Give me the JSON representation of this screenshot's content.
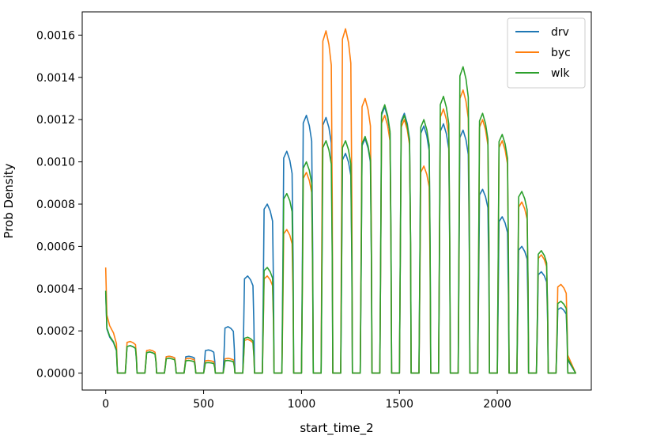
{
  "chart_data": {
    "type": "line",
    "title": "",
    "xlabel": "start_time_2",
    "ylabel": "Prob Density",
    "xlim": [
      -120,
      2480
    ],
    "ylim": [
      -8e-05,
      0.00171
    ],
    "xticks": [
      0,
      500,
      1000,
      1500,
      2000
    ],
    "xtick_labels": [
      "0",
      "500",
      "1000",
      "1500",
      "2000"
    ],
    "yticks": [
      0,
      0.0002,
      0.0004,
      0.0006,
      0.0008,
      0.001,
      0.0012,
      0.0014,
      0.0016
    ],
    "ytick_labels": [
      "0.0000",
      "0.0002",
      "0.0004",
      "0.0006",
      "0.0008",
      "0.0010",
      "0.0012",
      "0.0014",
      "0.0016"
    ],
    "grid": false,
    "legend_position": "top-right",
    "hour_peaks": [
      {
        "hour": 0,
        "drv": 0.00038,
        "byc": 0.0005,
        "wlk": 0.00039
      },
      {
        "hour": 1,
        "drv": 0.00013,
        "byc": 0.00015,
        "wlk": 0.00013
      },
      {
        "hour": 2,
        "drv": 0.0001,
        "byc": 0.00011,
        "wlk": 0.0001
      },
      {
        "hour": 3,
        "drv": 8e-05,
        "byc": 8e-05,
        "wlk": 7e-05
      },
      {
        "hour": 4,
        "drv": 8e-05,
        "byc": 7e-05,
        "wlk": 6e-05
      },
      {
        "hour": 5,
        "drv": 0.00011,
        "byc": 6e-05,
        "wlk": 5e-05
      },
      {
        "hour": 6,
        "drv": 0.00022,
        "byc": 7e-05,
        "wlk": 6e-05
      },
      {
        "hour": 7,
        "drv": 0.00046,
        "byc": 0.00016,
        "wlk": 0.00017
      },
      {
        "hour": 8,
        "drv": 0.0008,
        "byc": 0.00046,
        "wlk": 0.0005
      },
      {
        "hour": 9,
        "drv": 0.00105,
        "byc": 0.00068,
        "wlk": 0.00085
      },
      {
        "hour": 10,
        "drv": 0.00122,
        "byc": 0.00095,
        "wlk": 0.001
      },
      {
        "hour": 11,
        "drv": 0.00121,
        "byc": 0.00162,
        "wlk": 0.0011
      },
      {
        "hour": 12,
        "drv": 0.00104,
        "byc": 0.00163,
        "wlk": 0.0011
      },
      {
        "hour": 13,
        "drv": 0.00111,
        "byc": 0.0013,
        "wlk": 0.00112
      },
      {
        "hour": 14,
        "drv": 0.00126,
        "byc": 0.00122,
        "wlk": 0.00127
      },
      {
        "hour": 15,
        "drv": 0.00123,
        "byc": 0.0012,
        "wlk": 0.00122
      },
      {
        "hour": 16,
        "drv": 0.00117,
        "byc": 0.00098,
        "wlk": 0.0012
      },
      {
        "hour": 17,
        "drv": 0.00118,
        "byc": 0.00125,
        "wlk": 0.00131
      },
      {
        "hour": 18,
        "drv": 0.00115,
        "byc": 0.00134,
        "wlk": 0.00145
      },
      {
        "hour": 19,
        "drv": 0.00087,
        "byc": 0.0012,
        "wlk": 0.00123
      },
      {
        "hour": 20,
        "drv": 0.00074,
        "byc": 0.0011,
        "wlk": 0.00113
      },
      {
        "hour": 21,
        "drv": 0.0006,
        "byc": 0.00081,
        "wlk": 0.00086
      },
      {
        "hour": 22,
        "drv": 0.00048,
        "byc": 0.00056,
        "wlk": 0.00058
      },
      {
        "hour": 23,
        "drv": 0.00031,
        "byc": 0.00042,
        "wlk": 0.00034
      }
    ],
    "series": [
      {
        "name": "drv",
        "color": "#1f77b4"
      },
      {
        "name": "byc",
        "color": "#ff7f0e"
      },
      {
        "name": "wlk",
        "color": "#2ca02c"
      }
    ]
  }
}
